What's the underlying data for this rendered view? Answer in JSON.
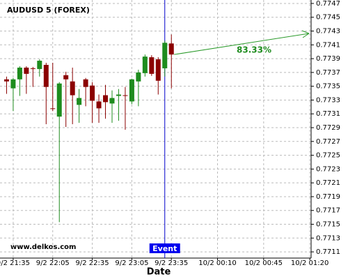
{
  "chart_data": {
    "type": "candlestick",
    "title": "AUDUSD 5 (FOREX)",
    "watermark": "www.delkos.com",
    "x_label": "Date",
    "x": [
      "9/2 21:30",
      "9/2 21:35",
      "9/2 21:40",
      "9/2 21:45",
      "9/2 21:50",
      "9/2 21:55",
      "9/2 22:00",
      "9/2 22:05",
      "9/2 22:10",
      "9/2 22:15",
      "9/2 22:20",
      "9/2 22:25",
      "9/2 22:30",
      "9/2 22:35",
      "9/2 22:40",
      "9/2 22:45",
      "9/2 22:50",
      "9/2 22:55",
      "9/2 23:00",
      "9/2 23:05",
      "9/2 23:10",
      "9/2 23:15",
      "9/2 23:20",
      "9/2 23:25",
      "9/2 23:30",
      "9/2 23:35"
    ],
    "open": [
      0.7736,
      0.77347,
      0.7736,
      0.77377,
      0.77376,
      0.77375,
      0.77381,
      0.77318,
      0.77306,
      0.77366,
      0.77357,
      0.77323,
      0.7736,
      0.77351,
      0.77328,
      0.77337,
      0.77325,
      0.77336,
      0.77337,
      0.77328,
      0.77357,
      0.77369,
      0.77392,
      0.77389,
      0.77376,
      0.77412
    ],
    "high": [
      0.77364,
      0.77362,
      0.77379,
      0.77379,
      0.77378,
      0.77389,
      0.77384,
      0.77384,
      0.77356,
      0.77371,
      0.77377,
      0.77346,
      0.77362,
      0.77356,
      0.77338,
      0.77352,
      0.77344,
      0.77346,
      0.77349,
      0.77361,
      0.77374,
      0.77396,
      0.77395,
      0.77392,
      0.77416,
      0.77425
    ],
    "low": [
      0.77339,
      0.77314,
      0.77336,
      0.77339,
      0.77349,
      0.77364,
      0.77295,
      0.77314,
      0.77153,
      0.77291,
      0.77295,
      0.77297,
      0.77321,
      0.77297,
      0.77297,
      0.77303,
      0.77297,
      0.773,
      0.77287,
      0.77324,
      0.77321,
      0.77364,
      0.77365,
      0.77338,
      0.77364,
      0.77347
    ],
    "close": [
      0.77357,
      0.7736,
      0.77377,
      0.77368,
      0.77375,
      0.77387,
      0.77349,
      0.77317,
      0.77354,
      0.7736,
      0.77337,
      0.77333,
      0.77349,
      0.77329,
      0.77318,
      0.77327,
      0.77333,
      0.77338,
      0.77336,
      0.7736,
      0.7737,
      0.77393,
      0.77368,
      0.77358,
      0.77413,
      0.77396
    ],
    "up_color": "#1e8c1e",
    "down_color": "#8b0000",
    "event": {
      "label": "Event",
      "x": "9/2 23:30"
    },
    "annotation": "83.33%",
    "xlim": [
      -1,
      46.2
    ],
    "xticks": [
      {
        "value": 1,
        "label": "9/2 21:35"
      },
      {
        "value": 7,
        "label": "9/2 22:05"
      },
      {
        "value": 13,
        "label": "9/2 22:35"
      },
      {
        "value": 19,
        "label": "9/2 23:05"
      },
      {
        "value": 25,
        "label": "9/2 23:35"
      },
      {
        "value": 32,
        "label": "10/2 00:10"
      },
      {
        "value": 39,
        "label": "10/2 00:45"
      },
      {
        "value": 46,
        "label": "10/2 01:20"
      }
    ],
    "ylim": [
      0.77101,
      0.77475
    ],
    "yticks": [
      0.7711,
      0.7713,
      0.7715,
      0.7717,
      0.7719,
      0.7721,
      0.7723,
      0.7725,
      0.7727,
      0.7729,
      0.7731,
      0.7733,
      0.7735,
      0.7737,
      0.7739,
      0.7741,
      0.7743,
      0.7745,
      0.7747
    ],
    "grid": true
  }
}
